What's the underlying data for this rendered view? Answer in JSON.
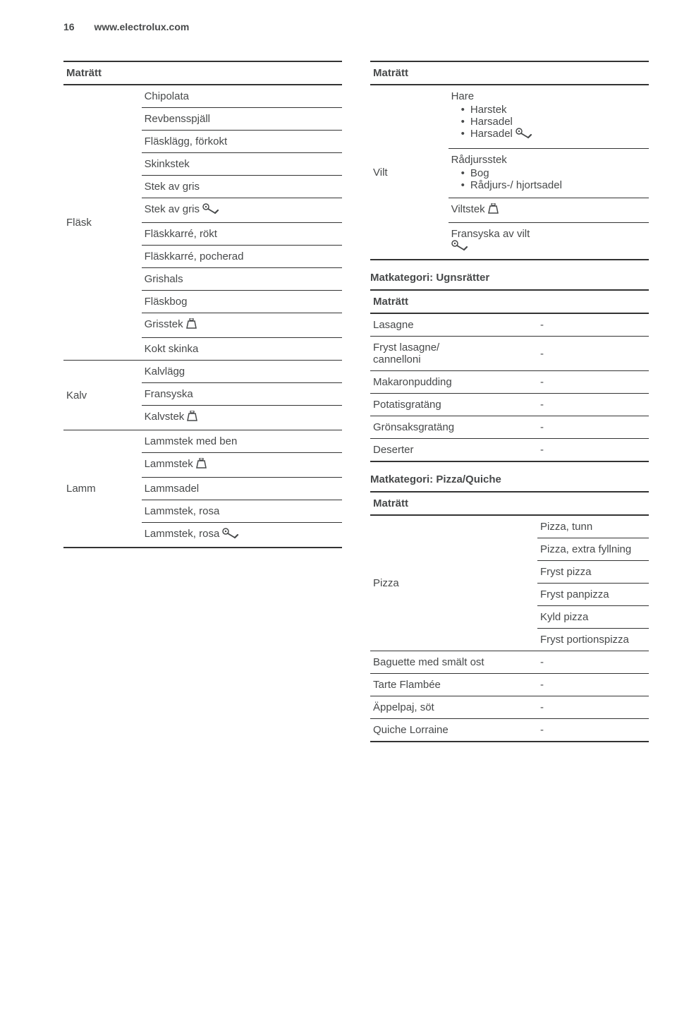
{
  "page": {
    "number": "16",
    "site": "www.electrolux.com"
  },
  "left": {
    "header": "Maträtt",
    "groups": [
      {
        "category": "Fläsk",
        "items": [
          {
            "label": "Chipolata"
          },
          {
            "label": "Revbensspjäll"
          },
          {
            "label": "Fläsklägg, förkokt"
          },
          {
            "label": "Skinkstek"
          },
          {
            "label": "Stek av gris"
          },
          {
            "label": "Stek av gris",
            "icon": "probe"
          },
          {
            "label": "Fläskkarré, rökt"
          },
          {
            "label": "Fläskkarré, pocherad"
          },
          {
            "label": "Grishals"
          },
          {
            "label": "Fläskbog"
          },
          {
            "label": "Grisstek",
            "icon": "weight"
          },
          {
            "label": "Kokt skinka"
          }
        ]
      },
      {
        "category": "Kalv",
        "items": [
          {
            "label": "Kalvlägg"
          },
          {
            "label": "Fransyska"
          },
          {
            "label": "Kalvstek",
            "icon": "weight"
          }
        ]
      },
      {
        "category": "Lamm",
        "items": [
          {
            "label": "Lammstek med ben"
          },
          {
            "label": "Lammstek",
            "icon": "weight"
          },
          {
            "label": "Lammsadel"
          },
          {
            "label": "Lammstek, rosa"
          },
          {
            "label": "Lammstek, rosa",
            "icon": "probe"
          }
        ]
      }
    ]
  },
  "right_top": {
    "header": "Maträtt",
    "group": {
      "category": "Vilt",
      "blocks": [
        {
          "title": "Hare",
          "bullets": [
            {
              "label": "Harstek"
            },
            {
              "label": "Harsadel"
            },
            {
              "label": "Harsadel",
              "icon": "probe"
            }
          ]
        },
        {
          "title": "Rådjursstek",
          "bullets": [
            {
              "label": "Bog"
            },
            {
              "label": "Rådjurs-/ hjortsadel"
            }
          ]
        },
        {
          "plain": "Viltstek",
          "icon": "weight"
        },
        {
          "plain": "Fransyska av vilt",
          "icon": "probe",
          "icon_below": true
        }
      ]
    }
  },
  "cat_ugn": {
    "title": "Matkategori: Ugnsrätter",
    "header": "Maträtt",
    "rows": [
      {
        "label": "Lasagne",
        "val": "-"
      },
      {
        "label": "Fryst lasagne/\ncannelloni",
        "val": "-"
      },
      {
        "label": "Makaronpudding",
        "val": "-"
      },
      {
        "label": "Potatisgratäng",
        "val": "-"
      },
      {
        "label": "Grönsaksgratäng",
        "val": "-"
      },
      {
        "label": "Deserter",
        "val": "-"
      }
    ]
  },
  "cat_pizza": {
    "title": "Matkategori: Pizza/Quiche",
    "header": "Maträtt",
    "group": {
      "category": "Pizza",
      "items": [
        {
          "label": "Pizza, tunn"
        },
        {
          "label": "Pizza, extra fyllning"
        },
        {
          "label": "Fryst pizza"
        },
        {
          "label": "Fryst panpizza"
        },
        {
          "label": "Kyld pizza"
        },
        {
          "label": "Fryst portionspizza"
        }
      ]
    },
    "tail_rows": [
      {
        "label": "Baguette med smält ost",
        "val": "-"
      },
      {
        "label": "Tarte Flambée",
        "val": "-"
      },
      {
        "label": "Äppelpaj, söt",
        "val": "-"
      },
      {
        "label": "Quiche Lorraine",
        "val": "-"
      }
    ]
  },
  "icons": {
    "probe_title": "food-probe-icon",
    "weight_title": "weight-icon"
  },
  "style": {
    "text_color": "#47494a",
    "rule_color": "#333333",
    "bg": "#ffffff",
    "font_size_body": 15,
    "font_size_header": 14
  }
}
